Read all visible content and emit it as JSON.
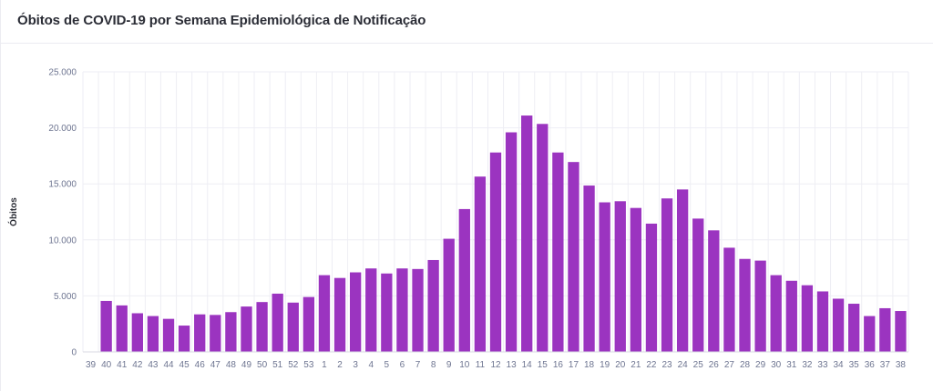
{
  "card": {
    "title": "Óbitos de COVID-19 por Semana Epidemiológica de Notificação"
  },
  "colors": {
    "bar": "#9b34c0",
    "grid": "#eeeef4",
    "axis": "#d9d9e3",
    "tick_text": "#6e7591"
  },
  "chart_data": {
    "type": "bar",
    "title": "Óbitos de COVID-19 por Semana Epidemiológica de Notificação",
    "xlabel": "",
    "ylabel": "Óbitos",
    "ylim": [
      0,
      25000
    ],
    "yticks": [
      0,
      5000,
      10000,
      15000,
      20000,
      25000
    ],
    "ytick_labels": [
      "0",
      "5.000",
      "10.000",
      "15.000",
      "20.000",
      "25.000"
    ],
    "grid": true,
    "categories": [
      "39",
      "40",
      "41",
      "42",
      "43",
      "44",
      "45",
      "46",
      "47",
      "48",
      "49",
      "50",
      "51",
      "52",
      "53",
      "1",
      "2",
      "3",
      "4",
      "5",
      "6",
      "7",
      "8",
      "9",
      "10",
      "11",
      "12",
      "13",
      "14",
      "15",
      "16",
      "17",
      "18",
      "19",
      "20",
      "21",
      "22",
      "23",
      "24",
      "25",
      "26",
      "27",
      "28",
      "29",
      "30",
      "31",
      "32",
      "33",
      "34",
      "35",
      "36",
      "37",
      "38"
    ],
    "values": [
      0,
      4550,
      4150,
      3450,
      3200,
      2950,
      2350,
      3350,
      3300,
      3550,
      4050,
      4450,
      5200,
      4400,
      4900,
      6850,
      6600,
      7100,
      7450,
      7000,
      7450,
      7400,
      8200,
      10100,
      12750,
      15650,
      17800,
      19600,
      21100,
      20350,
      17800,
      16950,
      14850,
      13350,
      13450,
      12850,
      11450,
      13700,
      14500,
      11900,
      10850,
      9300,
      8300,
      8150,
      6850,
      6350,
      5950,
      5400,
      4750,
      4300,
      3200,
      3900,
      3650
    ]
  }
}
